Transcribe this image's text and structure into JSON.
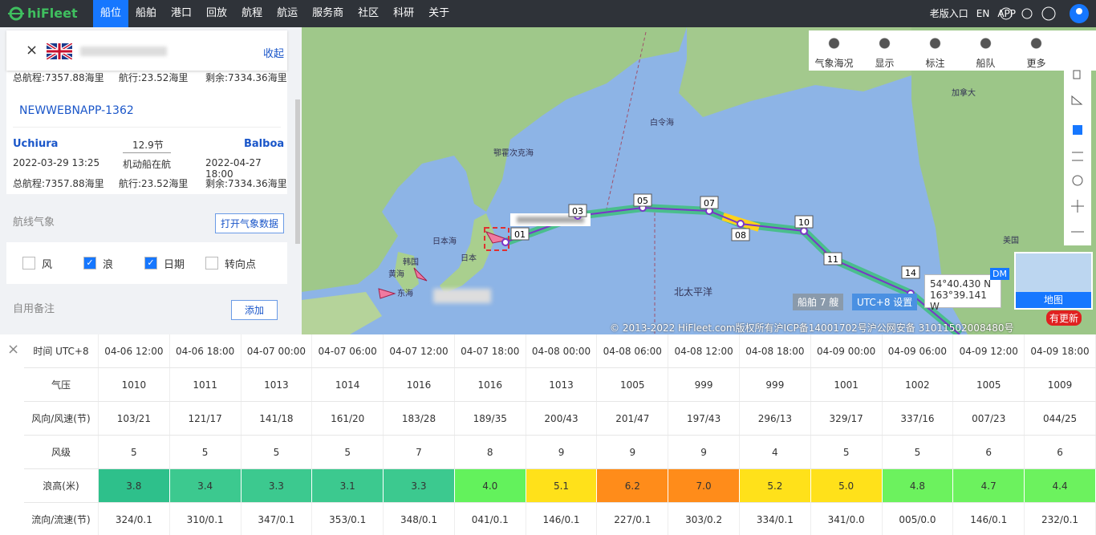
{
  "nav": {
    "logo": "hiFleet",
    "menu": [
      "船位",
      "船舶",
      "港口",
      "回放",
      "航程",
      "航运",
      "服务商",
      "社区",
      "科研",
      "关于"
    ],
    "right": [
      "老版入口",
      "EN",
      "APP"
    ]
  },
  "panel": {
    "collapse": "收起",
    "summary_top": [
      "总航程:7357.88海里",
      "航行:23.52海里",
      "剩余:7334.36海里"
    ],
    "voyage_name": "NEWWEBNAPP-1362",
    "from_port": "Uchiura",
    "to_port": "Balboa",
    "speed": "12.9节",
    "status": "机动船在航",
    "depart_time": "2022-03-29 13:25",
    "arrive_time": "2022-04-27 18:00",
    "summary": [
      "总航程:7357.88海里",
      "航行:23.52海里",
      "剩余:7334.36海里"
    ],
    "weather_title": "航线气象",
    "weather_button": "打开气象数据",
    "options": [
      {
        "label": "风",
        "checked": false
      },
      {
        "label": "浪",
        "checked": true
      },
      {
        "label": "日期",
        "checked": true
      },
      {
        "label": "转向点",
        "checked": false
      }
    ],
    "notes_title": "自用备注",
    "notes_button": "添加"
  },
  "map": {
    "toolbar": [
      "气象海况",
      "显示",
      "标注",
      "船队",
      "更多"
    ],
    "places": [
      "加拿大",
      "白令海",
      "鄂霍次克海",
      "日本海",
      "日本",
      "韩国",
      "黄海",
      "东海",
      "北太平洋",
      "美国"
    ],
    "waypoints": [
      "01",
      "03",
      "05",
      "07",
      "08",
      "10",
      "11",
      "14"
    ],
    "coords": [
      "54°40.430 N",
      "163°39.141 W"
    ],
    "ship_count": "船舶 7 艘",
    "timezone": "UTC+8 设置",
    "dm": "DM",
    "map_button": "地图",
    "update": "有更新",
    "copyright": "© 2013-2022 HiFleet.com版权所有沪ICP备14001702号沪公网安备 31011502008480号"
  },
  "table": {
    "header": "时间 UTC+8",
    "times": [
      "04-06 12:00",
      "04-06 18:00",
      "04-07 00:00",
      "04-07 06:00",
      "04-07 12:00",
      "04-07 18:00",
      "04-08 00:00",
      "04-08 06:00",
      "04-08 12:00",
      "04-08 18:00",
      "04-09 00:00",
      "04-09 06:00",
      "04-09 12:00",
      "04-09 18:00"
    ],
    "rows": [
      {
        "label": "气压",
        "cells": [
          "1010",
          "1011",
          "1013",
          "1014",
          "1016",
          "1016",
          "1013",
          "1005",
          "999",
          "999",
          "1001",
          "1002",
          "1005",
          "1009"
        ]
      },
      {
        "label": "风向/风速(节)",
        "cells": [
          "103/21",
          "121/17",
          "141/18",
          "161/20",
          "183/28",
          "189/35",
          "200/43",
          "201/47",
          "197/43",
          "296/13",
          "329/17",
          "337/16",
          "007/23",
          "044/25"
        ]
      },
      {
        "label": "风级",
        "cells": [
          "5",
          "5",
          "5",
          "5",
          "7",
          "8",
          "9",
          "9",
          "9",
          "4",
          "5",
          "5",
          "6",
          "6"
        ]
      },
      {
        "label": "浪高(米)",
        "cells": [
          "3.8",
          "3.4",
          "3.3",
          "3.1",
          "3.3",
          "4.0",
          "5.1",
          "6.2",
          "7.0",
          "5.2",
          "5.0",
          "4.8",
          "4.7",
          "4.4"
        ],
        "colors": [
          "#2ec08b",
          "#3cc98f",
          "#3cc98f",
          "#3cc98f",
          "#3cc98f",
          "#63f25c",
          "#ffe11a",
          "#ff8c1a",
          "#ff8c1a",
          "#ffe11a",
          "#ffe11a",
          "#6cf25e",
          "#6cf25e",
          "#6cf25e"
        ]
      },
      {
        "label": "流向/流速(节)",
        "cells": [
          "324/0.1",
          "310/0.1",
          "347/0.1",
          "353/0.1",
          "348/0.1",
          "041/0.1",
          "146/0.1",
          "227/0.1",
          "303/0.2",
          "334/0.1",
          "341/0.0",
          "005/0.0",
          "146/0.1",
          "232/0.1"
        ]
      }
    ]
  }
}
